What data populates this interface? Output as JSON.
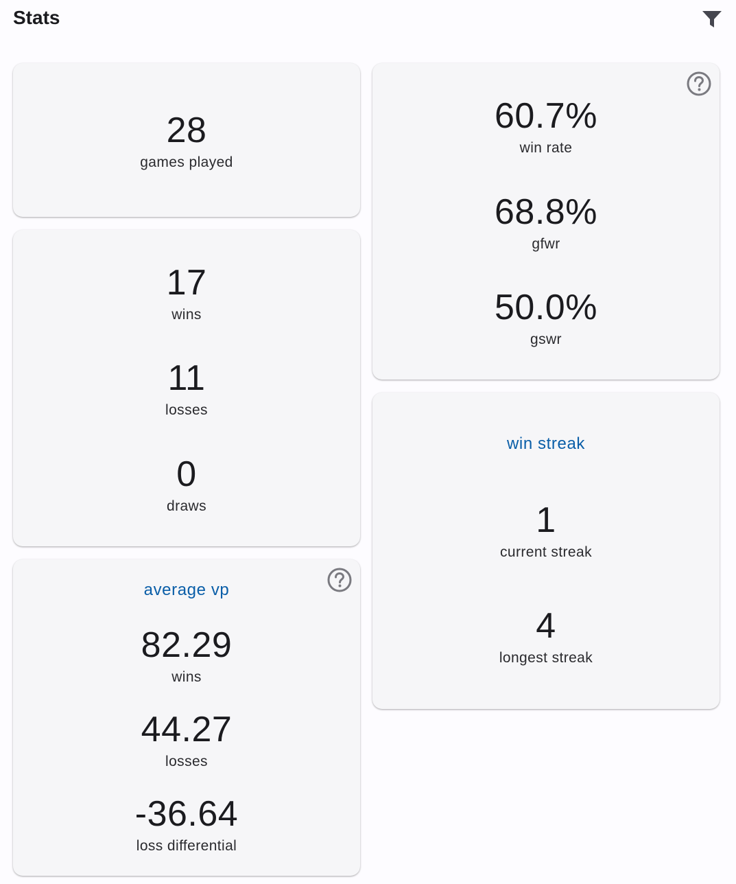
{
  "header": {
    "title": "Stats",
    "filter_icon": "filter-icon"
  },
  "games_card": {
    "value": "28",
    "label": "games played"
  },
  "record_card": {
    "wins_value": "17",
    "wins_label": "wins",
    "losses_value": "11",
    "losses_label": "losses",
    "draws_value": "0",
    "draws_label": "draws"
  },
  "rates_card": {
    "help_icon": "help-icon",
    "win_rate_value": "60.7%",
    "win_rate_label": "win rate",
    "gfwr_value": "68.8%",
    "gfwr_label": "gfwr",
    "gswr_value": "50.0%",
    "gswr_label": "gswr"
  },
  "streak_card": {
    "title": "win streak",
    "current_value": "1",
    "current_label": "current streak",
    "longest_value": "4",
    "longest_label": "longest streak"
  },
  "vp_card": {
    "title": "average vp",
    "help_icon": "help-icon",
    "wins_value": "82.29",
    "wins_label": "wins",
    "losses_value": "44.27",
    "losses_label": "losses",
    "diff_value": "-36.64",
    "diff_label": "loss differential"
  },
  "colors": {
    "accent": "#0a5ea8",
    "card_bg": "#f6f6f8",
    "page_bg": "#fdfcff",
    "icon": "#45464f",
    "help_icon": "#7a7a80"
  }
}
